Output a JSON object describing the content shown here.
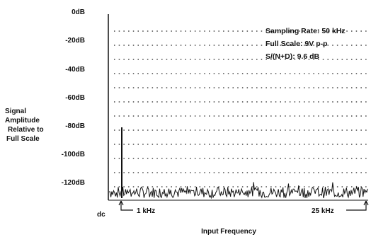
{
  "chart_data": {
    "type": "line",
    "title": "",
    "xlabel": "Input Frequency",
    "ylabel": [
      "Signal",
      "Amplitude",
      "Relative to",
      "Full Scale"
    ],
    "y_ticks": [
      "0dB",
      "-20dB",
      "-40dB",
      "-60dB",
      "-80dB",
      "-100dB",
      "-120dB"
    ],
    "ylim": [
      -130,
      0
    ],
    "xlim": [
      0,
      25
    ],
    "x_unit": "kHz",
    "x_tick_labels": [
      "dc",
      "1 kHz",
      "25 kHz"
    ],
    "annotations": [
      "Sampling Rate: 50 kHz",
      "Full Scale: 9V p-p",
      "S/(N+D): 9.6 dB"
    ],
    "grid": true,
    "series": [
      {
        "signal_peak": {
          "x": 1,
          "y": -78
        },
        "noise_floor_range": [
          -128,
          -120
        ]
      }
    ]
  }
}
